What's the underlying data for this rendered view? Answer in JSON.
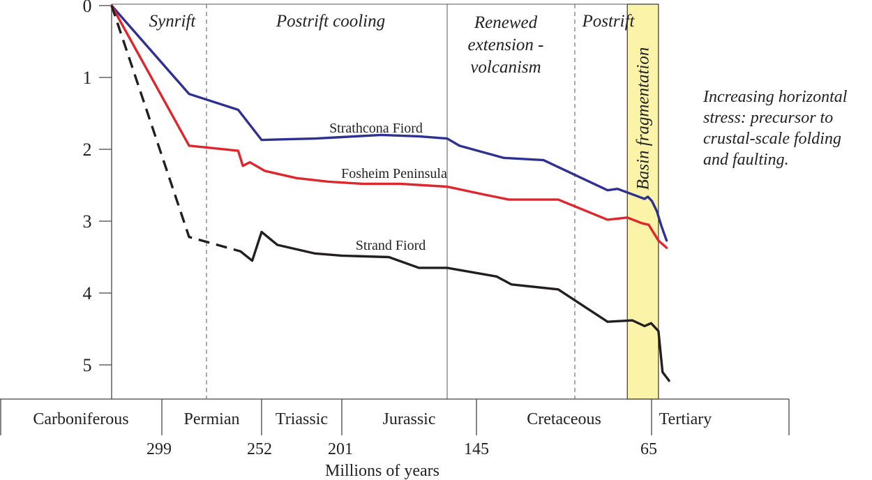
{
  "chart_data": {
    "type": "line",
    "xlabel": "Millions of years",
    "ylabel": "",
    "xlim": [
      359,
      0
    ],
    "ylim": [
      0,
      5.3
    ],
    "y_ticks": [
      "0",
      "1",
      "2",
      "3",
      "4",
      "5"
    ],
    "age_ticks": [
      {
        "label": "299",
        "value": 299
      },
      {
        "label": "252",
        "value": 252
      },
      {
        "label": "201",
        "value": 201
      },
      {
        "label": "145",
        "value": 145
      },
      {
        "label": "65",
        "value": 65
      }
    ],
    "periods": [
      {
        "label": "Carboniferous"
      },
      {
        "label": "Permian"
      },
      {
        "label": "Triassic"
      },
      {
        "label": "Jurassic"
      },
      {
        "label": "Cretaceous"
      },
      {
        "label": "Tertiary"
      }
    ],
    "phases": [
      {
        "lines": [
          "Synrift"
        ]
      },
      {
        "lines": [
          "Postrift cooling"
        ]
      },
      {
        "lines": [
          "Renewed",
          "extension -",
          "volcanism"
        ]
      },
      {
        "lines": [
          "Postrift"
        ]
      }
    ],
    "highlight": {
      "label": "Basin fragmentation",
      "from": 72,
      "to": 48,
      "color": "#fbf3a8"
    },
    "annotation": [
      "Increasing horizontal",
      "stress: precursor to",
      "crustal-scale folding",
      "and faulting."
    ],
    "series": [
      {
        "name": "Strathcona Fiord",
        "color": "#2e3192",
        "x": [
          359,
          310,
          272,
          252,
          236,
          218,
          201,
          180,
          160,
          145,
          140,
          122,
          106,
          80,
          76,
          65,
          61,
          56,
          50,
          44,
          38
        ],
        "y": [
          0,
          1.23,
          1.45,
          1.87,
          1.86,
          1.85,
          1.83,
          1.8,
          1.82,
          1.85,
          1.95,
          2.12,
          2.15,
          2.57,
          2.55,
          2.69,
          2.66,
          2.72,
          2.86,
          3.08,
          3.27
        ]
      },
      {
        "name": "Fosheim Peninsula",
        "color": "#e0262d",
        "x": [
          359,
          310,
          272,
          268,
          262,
          250,
          230,
          210,
          190,
          170,
          145,
          130,
          120,
          106,
          100,
          80,
          72,
          66,
          60,
          48,
          38
        ],
        "y": [
          0,
          1.95,
          2.02,
          2.23,
          2.18,
          2.3,
          2.4,
          2.45,
          2.48,
          2.48,
          2.52,
          2.63,
          2.7,
          2.7,
          2.7,
          2.98,
          2.95,
          3.03,
          3.05,
          3.27,
          3.37
        ]
      },
      {
        "name": "Strand Fiord",
        "color": "#231f20",
        "x": [
          359,
          310,
          270,
          260,
          252,
          242,
          218,
          201,
          176,
          160,
          145,
          125,
          119,
          100,
          80,
          70,
          65,
          61,
          57,
          48,
          43,
          35
        ],
        "y": [
          0,
          3.22,
          3.42,
          3.55,
          3.15,
          3.33,
          3.45,
          3.48,
          3.5,
          3.65,
          3.65,
          3.77,
          3.88,
          3.95,
          4.4,
          4.38,
          4.46,
          4.44,
          4.42,
          4.53,
          5.1,
          5.22
        ],
        "dashed_until_index": 2
      }
    ]
  }
}
